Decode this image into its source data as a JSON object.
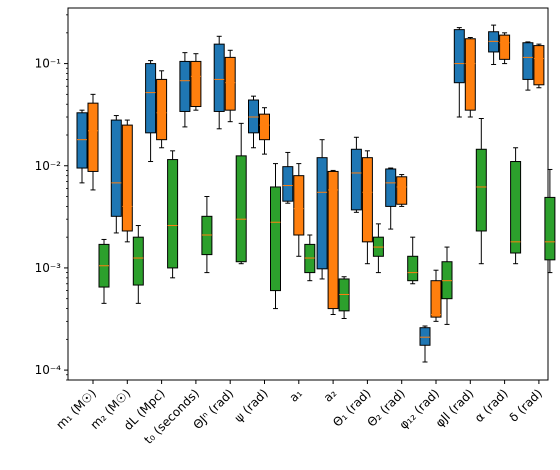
{
  "chart_data": {
    "type": "box",
    "y_scale": "log",
    "ylim": [
      8e-05,
      0.35
    ],
    "y_ticks": [
      {
        "value": 0.0001,
        "label": "10⁻⁴"
      },
      {
        "value": 0.001,
        "label": "10⁻³"
      },
      {
        "value": 0.01,
        "label": "10⁻²"
      },
      {
        "value": 0.1,
        "label": "10⁻¹"
      }
    ],
    "categories": [
      "m₁ (M☉)",
      "m₂ (M☉)",
      "dL (Mpc)",
      "t₀ (seconds)",
      "ΘJⁿ (rad)",
      "ψ (rad)",
      "a₁",
      "a₂",
      "Θ₁ (rad)",
      "Θ₂ (rad)",
      "φ₁₂ (rad)",
      "φJl (rad)",
      "α (rad)",
      "δ (rad)"
    ],
    "series": [
      {
        "color": "#1f77b4",
        "boxes": [
          {
            "whislo": 0.0068,
            "q1": 0.0095,
            "med": 0.018,
            "q3": 0.033,
            "whishi": 0.035
          },
          {
            "whislo": 0.0022,
            "q1": 0.0032,
            "med": 0.0068,
            "q3": 0.028,
            "whishi": 0.031
          },
          {
            "whislo": 0.011,
            "q1": 0.021,
            "med": 0.052,
            "q3": 0.1,
            "whishi": 0.107
          },
          {
            "whislo": 0.024,
            "q1": 0.034,
            "med": 0.068,
            "q3": 0.105,
            "whishi": 0.128
          },
          {
            "whislo": 0.023,
            "q1": 0.034,
            "med": 0.07,
            "q3": 0.155,
            "whishi": 0.185
          },
          {
            "whislo": 0.015,
            "q1": 0.021,
            "med": 0.03,
            "q3": 0.044,
            "whishi": 0.048
          },
          {
            "whislo": 0.0043,
            "q1": 0.0045,
            "med": 0.0064,
            "q3": 0.0098,
            "whishi": 0.0135
          },
          {
            "whislo": 0.00078,
            "q1": 0.00098,
            "med": 0.0055,
            "q3": 0.012,
            "whishi": 0.018
          },
          {
            "whislo": 0.0035,
            "q1": 0.0037,
            "med": 0.0085,
            "q3": 0.0145,
            "whishi": 0.019
          },
          {
            "whislo": 0.0024,
            "q1": 0.004,
            "med": 0.0068,
            "q3": 0.0093,
            "whishi": 0.0095
          },
          {
            "whislo": 0.00012,
            "q1": 0.000175,
            "med": 0.00021,
            "q3": 0.00026,
            "whishi": 0.00027
          },
          {
            "whislo": 0.03,
            "q1": 0.065,
            "med": 0.1,
            "q3": 0.215,
            "whishi": 0.225
          },
          {
            "whislo": 0.098,
            "q1": 0.13,
            "med": 0.165,
            "q3": 0.205,
            "whishi": 0.238
          },
          {
            "whislo": 0.055,
            "q1": 0.07,
            "med": 0.115,
            "q3": 0.16,
            "whishi": 0.163
          }
        ]
      },
      {
        "color": "#ff7f0e",
        "boxes": [
          {
            "whislo": 0.0058,
            "q1": 0.0088,
            "med": 0.022,
            "q3": 0.041,
            "whishi": 0.05
          },
          {
            "whislo": 0.0018,
            "q1": 0.0023,
            "med": 0.004,
            "q3": 0.025,
            "whishi": 0.028
          },
          {
            "whislo": 0.015,
            "q1": 0.018,
            "med": 0.033,
            "q3": 0.07,
            "whishi": 0.085
          },
          {
            "whislo": 0.035,
            "q1": 0.038,
            "med": 0.075,
            "q3": 0.105,
            "whishi": 0.125
          },
          {
            "whislo": 0.027,
            "q1": 0.035,
            "med": 0.065,
            "q3": 0.115,
            "whishi": 0.135
          },
          {
            "whislo": 0.013,
            "q1": 0.018,
            "med": 0.025,
            "q3": 0.032,
            "whishi": 0.037
          },
          {
            "whislo": 0.0013,
            "q1": 0.0021,
            "med": 0.0038,
            "q3": 0.008,
            "whishi": 0.0105
          },
          {
            "whislo": 0.00035,
            "q1": 0.0004,
            "med": 0.0058,
            "q3": 0.0088,
            "whishi": 0.009
          },
          {
            "whislo": 0.0011,
            "q1": 0.0018,
            "med": 0.0055,
            "q3": 0.012,
            "whishi": 0.014
          },
          {
            "whislo": 0.004,
            "q1": 0.0042,
            "med": 0.0062,
            "q3": 0.0078,
            "whishi": 0.0082
          },
          {
            "whislo": 0.0003,
            "q1": 0.00033,
            "med": 0.00035,
            "q3": 0.00075,
            "whishi": 0.00095
          },
          {
            "whislo": 0.03,
            "q1": 0.035,
            "med": 0.1,
            "q3": 0.175,
            "whishi": 0.18
          },
          {
            "whislo": 0.1,
            "q1": 0.11,
            "med": 0.16,
            "q3": 0.19,
            "whishi": 0.2
          },
          {
            "whislo": 0.058,
            "q1": 0.062,
            "med": 0.112,
            "q3": 0.15,
            "whishi": 0.155
          }
        ]
      },
      {
        "color": "#2ca02c",
        "boxes": [
          {
            "whislo": 0.00045,
            "q1": 0.00065,
            "med": 0.00105,
            "q3": 0.0017,
            "whishi": 0.0019
          },
          {
            "whislo": 0.00045,
            "q1": 0.00068,
            "med": 0.00125,
            "q3": 0.002,
            "whishi": 0.0026
          },
          {
            "whislo": 0.0008,
            "q1": 0.001,
            "med": 0.0026,
            "q3": 0.0115,
            "whishi": 0.014
          },
          {
            "whislo": 0.0009,
            "q1": 0.00135,
            "med": 0.0021,
            "q3": 0.0032,
            "whishi": 0.005
          },
          {
            "whislo": 0.0011,
            "q1": 0.00115,
            "med": 0.003,
            "q3": 0.0125,
            "whishi": 0.026
          },
          {
            "whislo": 0.0004,
            "q1": 0.0006,
            "med": 0.0028,
            "q3": 0.0062,
            "whishi": 0.0105
          },
          {
            "whislo": 0.00075,
            "q1": 0.0009,
            "med": 0.00125,
            "q3": 0.0017,
            "whishi": 0.0021
          },
          {
            "whislo": 0.00032,
            "q1": 0.00038,
            "med": 0.00055,
            "q3": 0.00078,
            "whishi": 0.00082
          },
          {
            "whislo": 0.0009,
            "q1": 0.0013,
            "med": 0.0016,
            "q3": 0.002,
            "whishi": 0.0027
          },
          {
            "whislo": 0.0007,
            "q1": 0.00075,
            "med": 0.0009,
            "q3": 0.0013,
            "whishi": 0.002
          },
          {
            "whislo": 0.00028,
            "q1": 0.0005,
            "med": 0.00075,
            "q3": 0.00115,
            "whishi": 0.0016
          },
          {
            "whislo": 0.0011,
            "q1": 0.0023,
            "med": 0.0062,
            "q3": 0.0145,
            "whishi": 0.029
          },
          {
            "whislo": 0.0011,
            "q1": 0.0014,
            "med": 0.0018,
            "q3": 0.011,
            "whishi": 0.015
          },
          {
            "whislo": 0.0009,
            "q1": 0.0012,
            "med": 0.0018,
            "q3": 0.0049,
            "whishi": 0.0092
          }
        ]
      }
    ],
    "median_color": "#ff7f0e",
    "grid": false,
    "legend": "none"
  }
}
